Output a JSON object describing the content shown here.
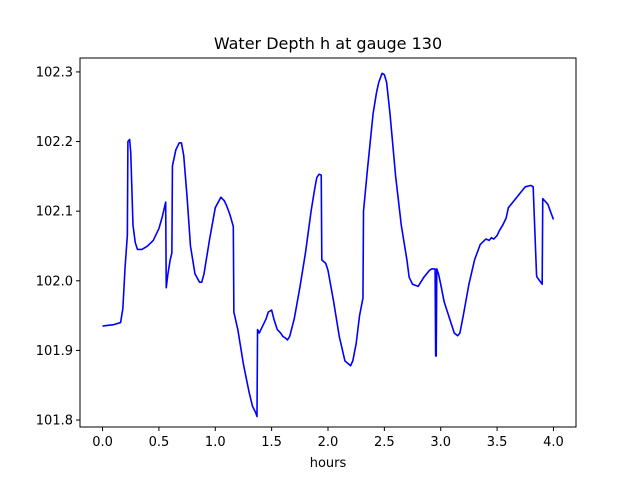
{
  "chart_data": {
    "type": "line",
    "title": "Water Depth h at gauge 130",
    "xlabel": "hours",
    "ylabel": "",
    "xlim": [
      -0.2,
      4.2
    ],
    "ylim": [
      101.79,
      102.32
    ],
    "xticks": [
      0.0,
      0.5,
      1.0,
      1.5,
      2.0,
      2.5,
      3.0,
      3.5,
      4.0
    ],
    "xtick_labels": [
      "0.0",
      "0.5",
      "1.0",
      "1.5",
      "2.0",
      "2.5",
      "3.0",
      "3.5",
      "4.0"
    ],
    "yticks": [
      101.8,
      101.9,
      102.0,
      102.1,
      102.2,
      102.3
    ],
    "ytick_labels": [
      "101.8",
      "101.9",
      "102.0",
      "102.1",
      "102.2",
      "102.3"
    ],
    "grid": false,
    "series": [
      {
        "color": "#0000ff",
        "x": [
          0.0,
          0.05,
          0.1,
          0.16,
          0.18,
          0.2,
          0.22,
          0.225,
          0.24,
          0.25,
          0.27,
          0.29,
          0.31,
          0.35,
          0.4,
          0.45,
          0.5,
          0.53,
          0.56,
          0.565,
          0.58,
          0.6,
          0.615,
          0.62,
          0.65,
          0.68,
          0.7,
          0.72,
          0.75,
          0.78,
          0.82,
          0.86,
          0.88,
          0.9,
          0.95,
          1.0,
          1.05,
          1.08,
          1.1,
          1.13,
          1.16,
          1.165,
          1.2,
          1.25,
          1.3,
          1.33,
          1.36,
          1.37,
          1.375,
          1.39,
          1.42,
          1.45,
          1.47,
          1.5,
          1.52,
          1.55,
          1.58,
          1.6,
          1.62,
          1.64,
          1.66,
          1.7,
          1.75,
          1.8,
          1.85,
          1.88,
          1.9,
          1.92,
          1.94,
          1.945,
          1.98,
          2.0,
          2.05,
          2.1,
          2.15,
          2.2,
          2.22,
          2.25,
          2.28,
          2.31,
          2.315,
          2.35,
          2.4,
          2.43,
          2.45,
          2.48,
          2.5,
          2.52,
          2.55,
          2.6,
          2.65,
          2.7,
          2.72,
          2.75,
          2.8,
          2.85,
          2.9,
          2.92,
          2.95,
          2.955,
          2.96,
          2.965,
          2.98,
          3.0,
          3.03,
          3.05,
          3.1,
          3.12,
          3.15,
          3.17,
          3.2,
          3.25,
          3.3,
          3.35,
          3.4,
          3.43,
          3.45,
          3.47,
          3.5,
          3.52,
          3.55,
          3.58,
          3.6,
          3.65,
          3.7,
          3.75,
          3.8,
          3.82,
          3.85,
          3.855,
          3.9,
          3.905,
          3.95,
          4.0
        ],
        "y": [
          101.935,
          101.936,
          101.937,
          101.94,
          101.96,
          102.02,
          102.065,
          102.2,
          102.203,
          102.185,
          102.08,
          102.055,
          102.045,
          102.045,
          102.05,
          102.058,
          102.075,
          102.092,
          102.113,
          101.99,
          102.01,
          102.03,
          102.04,
          102.165,
          102.188,
          102.198,
          102.198,
          102.18,
          102.12,
          102.05,
          102.01,
          101.998,
          101.998,
          102.01,
          102.06,
          102.105,
          102.12,
          102.115,
          102.108,
          102.095,
          102.078,
          101.955,
          101.93,
          101.88,
          101.84,
          101.82,
          101.81,
          101.805,
          101.93,
          101.925,
          101.935,
          101.945,
          101.955,
          101.958,
          101.945,
          101.93,
          101.925,
          101.92,
          101.918,
          101.915,
          101.92,
          101.945,
          101.99,
          102.04,
          102.1,
          102.13,
          102.148,
          102.153,
          102.152,
          102.03,
          102.025,
          102.015,
          101.97,
          101.92,
          101.885,
          101.878,
          101.885,
          101.91,
          101.95,
          101.975,
          102.1,
          102.16,
          102.24,
          102.27,
          102.285,
          102.298,
          102.296,
          102.285,
          102.24,
          102.15,
          102.08,
          102.03,
          102.005,
          101.995,
          101.992,
          102.005,
          102.015,
          102.017,
          102.017,
          101.892,
          101.892,
          102.017,
          102.01,
          101.995,
          101.97,
          101.96,
          101.935,
          101.925,
          101.921,
          101.925,
          101.95,
          101.995,
          102.03,
          102.052,
          102.06,
          102.058,
          102.062,
          102.06,
          102.065,
          102.072,
          102.08,
          102.09,
          102.105,
          102.115,
          102.125,
          102.135,
          102.137,
          102.135,
          102.008,
          102.005,
          101.995,
          102.118,
          102.11,
          102.088
        ]
      }
    ]
  }
}
